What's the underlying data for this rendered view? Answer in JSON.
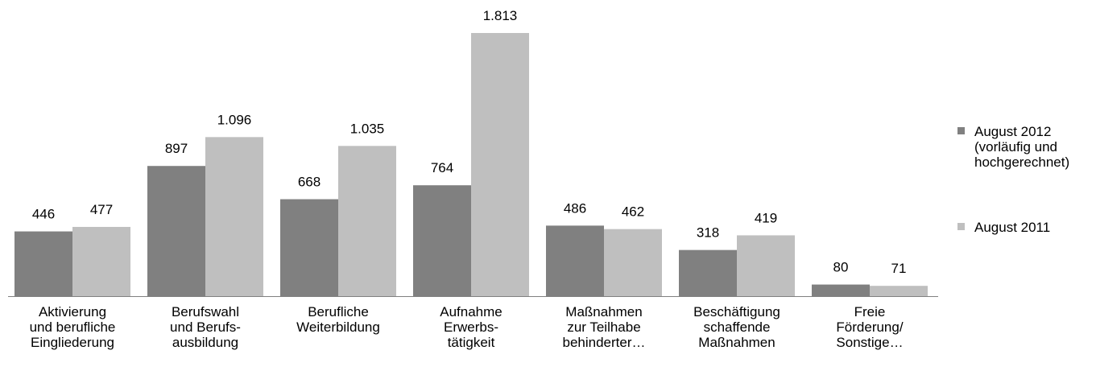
{
  "chart_data": {
    "type": "bar",
    "categories": [
      [
        "Aktivierung",
        "und berufliche",
        "Eingliederung"
      ],
      [
        "Berufswahl",
        "und Berufs-",
        "ausbildung"
      ],
      [
        "Berufliche",
        "Weiterbildung"
      ],
      [
        "Aufnahme",
        "Erwerbs-",
        "tätigkeit"
      ],
      [
        "Maßnahmen",
        "zur Teilhabe",
        "behinderter…"
      ],
      [
        "Beschäftigung",
        "schaffende",
        "Maßnahmen"
      ],
      [
        "Freie",
        "Förderung/",
        "Sonstige…"
      ]
    ],
    "series": [
      {
        "name": "August 2012 (vorläufig und hochgerechnet)",
        "color": "#808080",
        "values": [
          446,
          897,
          668,
          764,
          486,
          318,
          80
        ]
      },
      {
        "name": "August 2011",
        "color": "#bfbfbf",
        "values": [
          477,
          1096,
          1035,
          1813,
          462,
          419,
          71
        ],
        "value_labels": [
          "477",
          "1.096",
          "1.035",
          "1.813",
          "462",
          "419",
          "71"
        ]
      }
    ],
    "legend": "right"
  }
}
